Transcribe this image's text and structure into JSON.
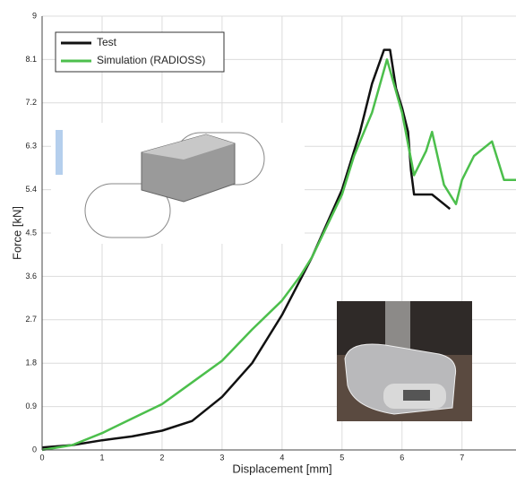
{
  "chart_data": {
    "type": "line",
    "xlabel": "Displacement [mm]",
    "ylabel": "Force [kN]",
    "xlim": [
      0,
      7.9
    ],
    "ylim": [
      0,
      9
    ],
    "xticks": [
      0,
      1,
      2,
      3,
      4,
      5,
      6,
      7
    ],
    "yticks": [
      0,
      0.9,
      1.8,
      2.7,
      3.6,
      4.5,
      5.4,
      6.3,
      7.2,
      8.1,
      9
    ],
    "grid": true,
    "legend": "upper left",
    "series": [
      {
        "name": "Test",
        "color": "#111111",
        "x": [
          0,
          0.5,
          1,
          1.5,
          2,
          2.5,
          3,
          3.5,
          4,
          4.5,
          5,
          5.3,
          5.5,
          5.7,
          5.8,
          5.9,
          6.0,
          6.1,
          6.15,
          6.2,
          6.5,
          6.7,
          6.8
        ],
        "values": [
          0.05,
          0.1,
          0.2,
          0.28,
          0.4,
          0.6,
          1.1,
          1.8,
          2.8,
          4.0,
          5.4,
          6.6,
          7.6,
          8.3,
          8.3,
          7.5,
          7.1,
          6.6,
          5.8,
          5.3,
          5.3,
          5.1,
          5.0
        ]
      },
      {
        "name": "Simulation (RADIOSS)",
        "color": "#4cbf4c",
        "x": [
          0,
          0.5,
          1,
          1.5,
          2,
          2.5,
          3,
          3.5,
          4,
          4.3,
          4.5,
          5,
          5.2,
          5.5,
          5.75,
          6.0,
          6.2,
          6.4,
          6.5,
          6.7,
          6.9,
          7.0,
          7.2,
          7.5,
          7.7,
          7.9
        ],
        "values": [
          0,
          0.1,
          0.35,
          0.65,
          0.95,
          1.4,
          1.85,
          2.5,
          3.1,
          3.6,
          4.0,
          5.3,
          6.1,
          7.0,
          8.1,
          7.0,
          5.7,
          6.2,
          6.6,
          5.5,
          5.1,
          5.6,
          6.1,
          6.4,
          5.6,
          5.6
        ]
      }
    ]
  }
}
